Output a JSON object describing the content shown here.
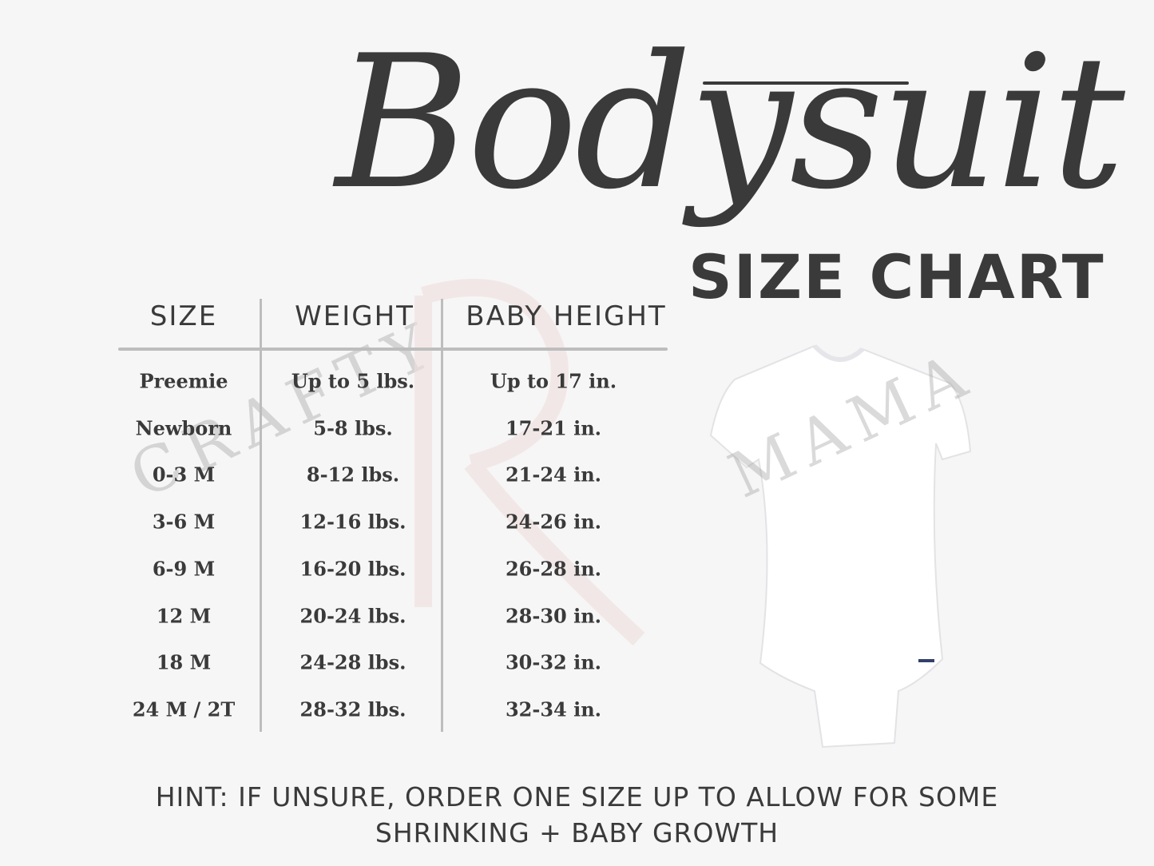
{
  "title": "Bodysuit",
  "subtitle": "SIZE CHART",
  "table": {
    "headers": [
      "SIZE",
      "WEIGHT",
      "BABY HEIGHT"
    ],
    "rows": [
      [
        "Preemie",
        "Up to 5 lbs.",
        "Up to 17 in."
      ],
      [
        "Newborn",
        "5-8 lbs.",
        "17-21 in."
      ],
      [
        "0-3 M",
        "8-12 lbs.",
        "21-24 in."
      ],
      [
        "3-6 M",
        "12-16 lbs.",
        "24-26 in."
      ],
      [
        "6-9 M",
        "16-20 lbs.",
        "26-28 in."
      ],
      [
        "12 M",
        "20-24 lbs.",
        "28-30 in."
      ],
      [
        "18 M",
        "24-28 lbs.",
        "30-32 in."
      ],
      [
        "24 M / 2T",
        "28-32 lbs.",
        "32-34 in."
      ]
    ]
  },
  "hint": {
    "line1": "HINT: IF UNSURE, ORDER ONE SIZE UP TO ALLOW FOR SOME",
    "line2": "SHRINKING + BABY GROWTH"
  },
  "watermark": {
    "left": "CRAFTY",
    "right": "MAMA",
    "accent_color": "#f2d6d6"
  },
  "colors": {
    "text": "#3a3a3a",
    "background": "#f6f6f6",
    "rule": "#bdbdbd"
  }
}
